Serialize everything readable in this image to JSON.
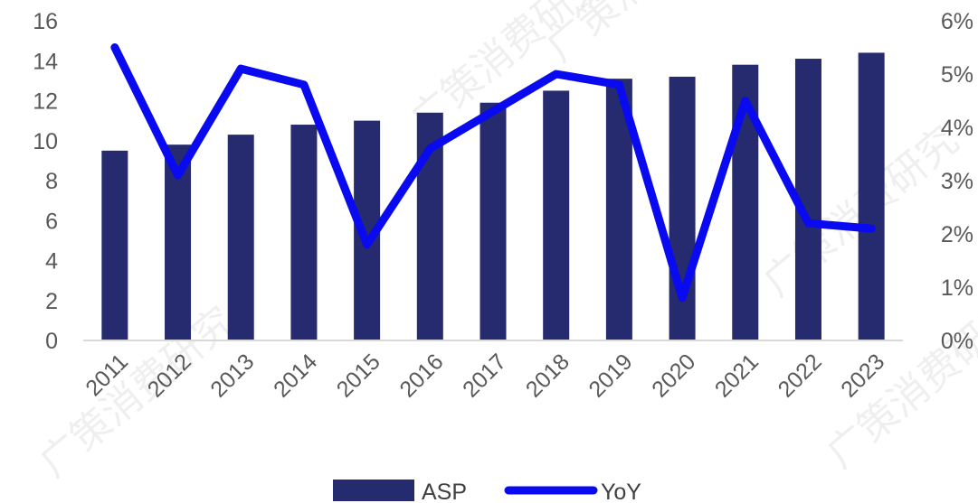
{
  "chart_data": {
    "type": "bar",
    "categories": [
      "2011",
      "2012",
      "2013",
      "2014",
      "2015",
      "2016",
      "2017",
      "2018",
      "2019",
      "2020",
      "2021",
      "2022",
      "2023"
    ],
    "series": [
      {
        "name": "ASP",
        "type": "bar",
        "axis": "left",
        "values": [
          9.5,
          9.8,
          10.3,
          10.8,
          11.0,
          11.4,
          11.9,
          12.5,
          13.1,
          13.2,
          13.8,
          14.1,
          14.4
        ]
      },
      {
        "name": "YoY",
        "type": "line",
        "axis": "right",
        "values": [
          0.055,
          0.031,
          0.051,
          0.048,
          0.018,
          0.036,
          0.043,
          0.05,
          0.048,
          0.008,
          0.045,
          0.022,
          0.021
        ]
      }
    ],
    "y_left": {
      "ylim": [
        0,
        16
      ],
      "ticks": [
        "0",
        "2",
        "4",
        "6",
        "8",
        "10",
        "12",
        "14",
        "16"
      ]
    },
    "y_right": {
      "ylim": [
        0,
        0.06
      ],
      "ticks": [
        "0%",
        "1%",
        "2%",
        "3%",
        "4%",
        "5%",
        "6%"
      ]
    },
    "title": "",
    "xlabel": "",
    "ylabel": "",
    "legend": "bottom",
    "grid": false,
    "colors": {
      "bar": "#262a6e",
      "line": "#0a0af0",
      "axis": "#d9d9d9",
      "text": "#595959"
    }
  }
}
